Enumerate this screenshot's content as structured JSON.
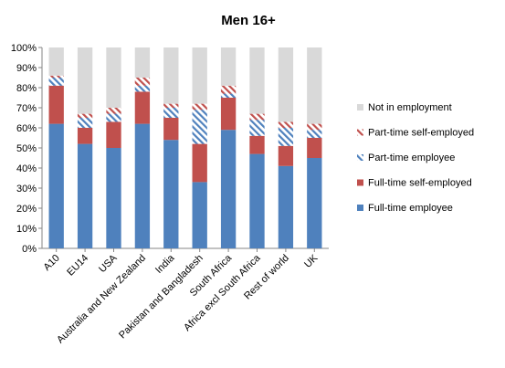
{
  "chart_data": {
    "type": "bar",
    "stacked": true,
    "title": "Men 16+",
    "xlabel": "",
    "ylabel": "",
    "ylim": [
      0,
      100
    ],
    "y_ticks": [
      "0%",
      "10%",
      "20%",
      "30%",
      "40%",
      "50%",
      "60%",
      "70%",
      "80%",
      "90%",
      "100%"
    ],
    "grid": false,
    "legend_position": "right",
    "categories": [
      "A10",
      "EU14",
      "USA",
      "Australia and New Zealand",
      "India",
      "Pakistan and Bangladesh",
      "South Africa",
      "Africa excl South Africa",
      "Rest of world",
      "UK"
    ],
    "series": [
      {
        "name": "Full-time employee",
        "color": "#4f81bd",
        "pattern": "solid",
        "values": [
          62,
          52,
          50,
          62,
          54,
          33,
          59,
          47,
          41,
          45
        ]
      },
      {
        "name": "Full-time self-employed",
        "color": "#c0504d",
        "pattern": "solid",
        "values": [
          19,
          8,
          13,
          16,
          11,
          19,
          16,
          9,
          10,
          10
        ]
      },
      {
        "name": "Part-time employee",
        "color": "#4f81bd",
        "pattern": "hatch",
        "values": [
          4,
          5,
          4,
          3,
          5,
          17,
          2,
          8,
          9,
          4
        ]
      },
      {
        "name": "Part-time self-employed",
        "color": "#c0504d",
        "pattern": "hatch",
        "values": [
          1,
          2,
          3,
          4,
          2,
          3,
          4,
          3,
          3,
          3
        ]
      },
      {
        "name": "Not in employment",
        "color": "#d9d9d9",
        "pattern": "solid",
        "values": [
          14,
          33,
          30,
          15,
          28,
          28,
          19,
          33,
          37,
          38
        ]
      }
    ],
    "legend": [
      "Not in employment",
      "Part-time self-employed",
      "Part-time employee",
      "Full-time self-employed",
      "Full-time employee"
    ]
  }
}
